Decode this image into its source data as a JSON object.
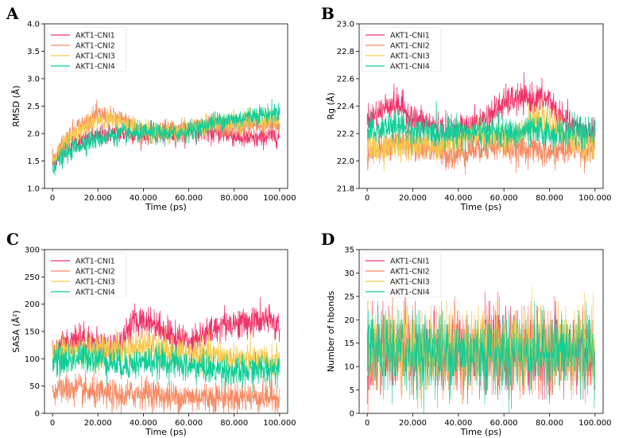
{
  "colors": {
    "AKT1-CNI1": "#f0346a",
    "AKT1-CNI2": "#f68a63",
    "AKT1-CNI3": "#f7c94a",
    "AKT1-CNI4": "#0fcf98"
  },
  "chart_data": [
    {
      "panel": "A",
      "type": "line",
      "xlabel": "Time (ps)",
      "ylabel": "RMSD (Å)",
      "xlim": [
        0,
        100000
      ],
      "ylim": [
        1.0,
        4.0
      ],
      "xticks": [
        0,
        20000,
        40000,
        60000,
        80000,
        100000
      ],
      "xtick_labels": [
        "0",
        "20.000",
        "40.000",
        "60.000",
        "80.000",
        "100.000"
      ],
      "yticks": [
        1.0,
        1.5,
        2.0,
        2.5,
        3.0,
        3.5,
        4.0
      ],
      "ytick_labels": [
        "1.0",
        "1.5",
        "2.0",
        "2.5",
        "3.0",
        "3.5",
        "4.0"
      ],
      "legend": "top-left",
      "x": [
        0,
        5000,
        10000,
        15000,
        20000,
        25000,
        30000,
        35000,
        40000,
        45000,
        50000,
        55000,
        60000,
        65000,
        70000,
        75000,
        80000,
        85000,
        90000,
        95000,
        100000
      ],
      "series": [
        {
          "name": "AKT1-CNI1",
          "values": [
            1.45,
            1.7,
            1.85,
            1.9,
            1.95,
            2.0,
            2.0,
            2.0,
            2.0,
            2.0,
            2.0,
            2.0,
            2.05,
            2.05,
            2.0,
            2.0,
            1.95,
            1.9,
            1.9,
            1.95,
            1.95
          ]
        },
        {
          "name": "AKT1-CNI2",
          "values": [
            1.5,
            1.85,
            2.1,
            2.2,
            2.35,
            2.3,
            2.25,
            2.15,
            2.05,
            2.05,
            2.1,
            2.05,
            2.1,
            2.15,
            2.15,
            2.1,
            2.1,
            2.15,
            2.15,
            2.15,
            2.15
          ]
        },
        {
          "name": "AKT1-CNI3",
          "values": [
            1.5,
            1.8,
            2.0,
            2.15,
            2.25,
            2.25,
            2.2,
            2.15,
            2.05,
            2.0,
            2.05,
            2.05,
            2.05,
            2.1,
            2.15,
            2.2,
            2.2,
            2.2,
            2.25,
            2.2,
            2.25
          ]
        },
        {
          "name": "AKT1-CNI4",
          "values": [
            1.4,
            1.6,
            1.75,
            1.85,
            1.9,
            1.95,
            2.0,
            2.0,
            2.0,
            2.0,
            2.0,
            2.0,
            2.05,
            2.1,
            2.2,
            2.25,
            2.25,
            2.3,
            2.35,
            2.35,
            2.4
          ]
        }
      ]
    },
    {
      "panel": "B",
      "type": "line",
      "xlabel": "Time (ps)",
      "ylabel": "Rg (Å)",
      "xlim": [
        0,
        100000
      ],
      "ylim": [
        21.8,
        23.0
      ],
      "xticks": [
        0,
        20000,
        40000,
        60000,
        80000,
        100000
      ],
      "xtick_labels": [
        "0",
        "20.000",
        "40.000",
        "60.000",
        "80.000",
        "100.000"
      ],
      "yticks": [
        21.8,
        22.0,
        22.2,
        22.4,
        22.6,
        22.8,
        23.0
      ],
      "ytick_labels": [
        "21.8",
        "22.0",
        "22.2",
        "22.4",
        "22.6",
        "22.8",
        "23.0"
      ],
      "legend": "top-left",
      "x": [
        0,
        5000,
        10000,
        15000,
        20000,
        25000,
        30000,
        35000,
        40000,
        45000,
        50000,
        55000,
        60000,
        65000,
        70000,
        75000,
        80000,
        85000,
        90000,
        95000,
        100000
      ],
      "series": [
        {
          "name": "AKT1-CNI1",
          "values": [
            22.3,
            22.35,
            22.42,
            22.4,
            22.3,
            22.28,
            22.25,
            22.22,
            22.22,
            22.25,
            22.28,
            22.35,
            22.42,
            22.45,
            22.45,
            22.45,
            22.45,
            22.3,
            22.25,
            22.22,
            22.2
          ]
        },
        {
          "name": "AKT1-CNI2",
          "values": [
            22.05,
            22.08,
            22.1,
            22.15,
            22.12,
            22.1,
            22.08,
            22.05,
            22.05,
            22.08,
            22.1,
            22.12,
            22.1,
            22.08,
            22.1,
            22.08,
            22.05,
            22.08,
            22.1,
            22.08,
            22.1
          ]
        },
        {
          "name": "AKT1-CNI3",
          "values": [
            22.1,
            22.08,
            22.1,
            22.12,
            22.15,
            22.12,
            22.1,
            22.12,
            22.15,
            22.18,
            22.2,
            22.18,
            22.15,
            22.2,
            22.25,
            22.3,
            22.28,
            22.22,
            22.15,
            22.12,
            22.15
          ]
        },
        {
          "name": "AKT1-CNI4",
          "values": [
            22.2,
            22.22,
            22.25,
            22.25,
            22.22,
            22.22,
            22.2,
            22.22,
            22.22,
            22.2,
            22.2,
            22.22,
            22.2,
            22.2,
            22.22,
            22.22,
            22.2,
            22.2,
            22.22,
            22.2,
            22.2
          ]
        }
      ]
    },
    {
      "panel": "C",
      "type": "line",
      "xlabel": "Time (ps)",
      "ylabel": "SASA (Å²)",
      "xlim": [
        0,
        100000
      ],
      "ylim": [
        0,
        300
      ],
      "xticks": [
        0,
        20000,
        40000,
        60000,
        80000,
        100000
      ],
      "xtick_labels": [
        "0",
        "20.000",
        "40.000",
        "60.000",
        "80.000",
        "100.000"
      ],
      "yticks": [
        0,
        50,
        100,
        150,
        200,
        250,
        300
      ],
      "ytick_labels": [
        "0",
        "50",
        "100",
        "150",
        "200",
        "250",
        "300"
      ],
      "legend": "top-left",
      "x": [
        0,
        5000,
        10000,
        15000,
        20000,
        25000,
        30000,
        35000,
        40000,
        45000,
        50000,
        55000,
        60000,
        65000,
        70000,
        75000,
        80000,
        85000,
        90000,
        95000,
        100000
      ],
      "series": [
        {
          "name": "AKT1-CNI1",
          "values": [
            110,
            125,
            140,
            135,
            125,
            120,
            130,
            165,
            170,
            165,
            150,
            135,
            135,
            140,
            150,
            165,
            165,
            165,
            170,
            170,
            160
          ]
        },
        {
          "name": "AKT1-CNI2",
          "values": [
            40,
            45,
            45,
            40,
            35,
            35,
            30,
            35,
            40,
            35,
            30,
            30,
            30,
            30,
            30,
            30,
            30,
            30,
            30,
            30,
            30
          ]
        },
        {
          "name": "AKT1-CNI3",
          "values": [
            105,
            115,
            115,
            115,
            115,
            115,
            115,
            120,
            125,
            120,
            110,
            110,
            110,
            110,
            105,
            105,
            100,
            100,
            95,
            95,
            95
          ]
        },
        {
          "name": "AKT1-CNI4",
          "values": [
            100,
            95,
            100,
            105,
            100,
            95,
            90,
            90,
            95,
            95,
            95,
            90,
            85,
            85,
            80,
            80,
            75,
            75,
            80,
            80,
            85
          ]
        }
      ]
    },
    {
      "panel": "D",
      "type": "line",
      "xlabel": "Time (ps)",
      "ylabel": "Number of hbonds",
      "xlim": [
        0,
        100000
      ],
      "ylim": [
        0,
        35
      ],
      "xticks": [
        0,
        20000,
        40000,
        60000,
        80000,
        100000
      ],
      "xtick_labels": [
        "0",
        "20.000",
        "40.000",
        "60.000",
        "80.000",
        "100.000"
      ],
      "yticks": [
        0,
        5,
        10,
        15,
        20,
        25,
        30,
        35
      ],
      "ytick_labels": [
        "0",
        "5",
        "10",
        "15",
        "20",
        "25",
        "30",
        "35"
      ],
      "legend": "top-left",
      "x": [
        0,
        5000,
        10000,
        15000,
        20000,
        25000,
        30000,
        35000,
        40000,
        45000,
        50000,
        55000,
        60000,
        65000,
        70000,
        75000,
        80000,
        85000,
        90000,
        95000,
        100000
      ],
      "series": [
        {
          "name": "AKT1-CNI1",
          "values": [
            13,
            13,
            13,
            13,
            13,
            13,
            13,
            13,
            13,
            13,
            13,
            13,
            13,
            13,
            13,
            13,
            13,
            13,
            13,
            13,
            13
          ]
        },
        {
          "name": "AKT1-CNI2",
          "values": [
            13,
            13,
            14,
            14,
            13,
            13,
            13,
            13,
            13,
            13,
            13,
            13,
            13,
            13,
            13,
            13,
            13,
            13,
            13,
            13,
            13
          ]
        },
        {
          "name": "AKT1-CNI3",
          "values": [
            14,
            14,
            15,
            15,
            14,
            14,
            14,
            14,
            14,
            14,
            14,
            14,
            14,
            14,
            14,
            14,
            14,
            14,
            14,
            14,
            14
          ]
        },
        {
          "name": "AKT1-CNI4",
          "values": [
            13,
            13,
            13,
            13,
            13,
            13,
            13,
            13,
            13,
            13,
            13,
            13,
            13,
            13,
            13,
            13,
            13,
            13,
            13,
            13,
            13
          ]
        }
      ]
    }
  ]
}
